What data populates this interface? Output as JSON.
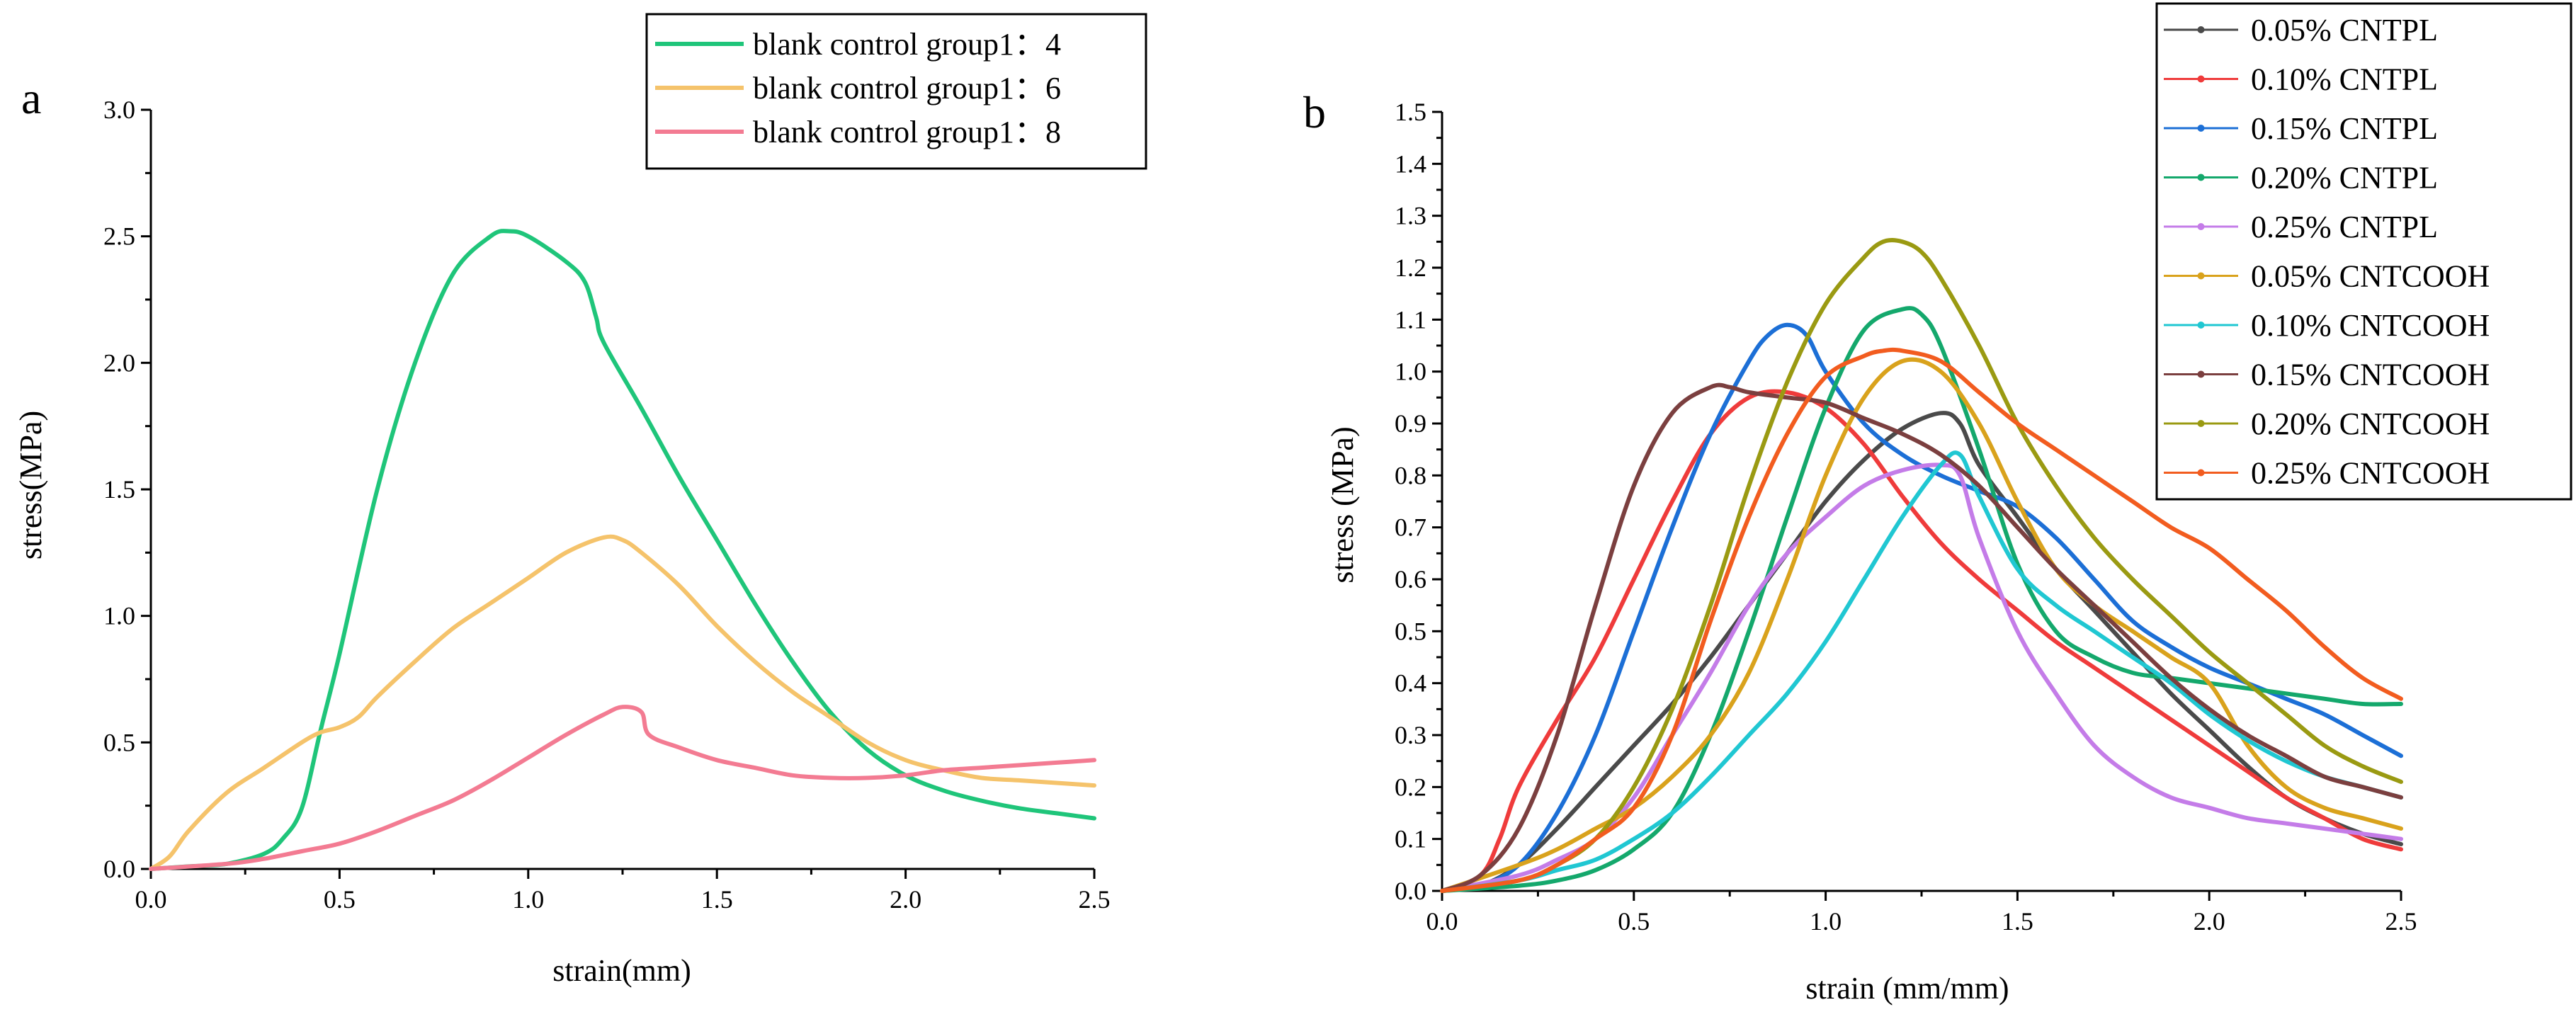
{
  "chart_data": [
    {
      "panel_label": "a",
      "type": "line",
      "xlabel": "strain(mm)",
      "ylabel": "stress(MPa)",
      "xlim": [
        0,
        2.5
      ],
      "ylim": [
        0,
        3.0
      ],
      "xticks": [
        "0.0",
        "0.5",
        "1.0",
        "1.5",
        "2.0",
        "2.5"
      ],
      "yticks": [
        "0.0",
        "0.5",
        "1.0",
        "1.5",
        "2.0",
        "2.5",
        "3.0"
      ],
      "legend_position": "top-right",
      "series": [
        {
          "name": "blank control group1：4",
          "color": "#1fc57a",
          "x": [
            0,
            0.1,
            0.2,
            0.3,
            0.35,
            0.4,
            0.45,
            0.5,
            0.6,
            0.7,
            0.8,
            0.9,
            0.95,
            1.0,
            1.1,
            1.15,
            1.18,
            1.2,
            1.3,
            1.4,
            1.5,
            1.6,
            1.7,
            1.8,
            1.9,
            2.0,
            2.1,
            2.2,
            2.3,
            2.4,
            2.5
          ],
          "y": [
            0,
            0.01,
            0.02,
            0.06,
            0.12,
            0.24,
            0.55,
            0.85,
            1.5,
            2.0,
            2.35,
            2.5,
            2.52,
            2.5,
            2.4,
            2.32,
            2.18,
            2.08,
            1.82,
            1.55,
            1.3,
            1.05,
            0.82,
            0.62,
            0.47,
            0.37,
            0.31,
            0.27,
            0.24,
            0.22,
            0.2
          ]
        },
        {
          "name": "blank control group1：6",
          "color": "#f5c36b",
          "x": [
            0,
            0.05,
            0.1,
            0.2,
            0.3,
            0.4,
            0.45,
            0.5,
            0.55,
            0.6,
            0.7,
            0.8,
            0.9,
            1.0,
            1.1,
            1.2,
            1.25,
            1.3,
            1.4,
            1.5,
            1.6,
            1.7,
            1.8,
            1.9,
            2.0,
            2.1,
            2.2,
            2.3,
            2.5
          ],
          "y": [
            0,
            0.05,
            0.15,
            0.3,
            0.4,
            0.5,
            0.54,
            0.56,
            0.6,
            0.68,
            0.82,
            0.95,
            1.05,
            1.15,
            1.25,
            1.31,
            1.3,
            1.25,
            1.12,
            0.96,
            0.82,
            0.7,
            0.6,
            0.5,
            0.43,
            0.39,
            0.36,
            0.35,
            0.33
          ]
        },
        {
          "name": "blank control group1：8",
          "color": "#f37b92",
          "x": [
            0,
            0.2,
            0.3,
            0.4,
            0.5,
            0.6,
            0.7,
            0.8,
            0.9,
            1.0,
            1.1,
            1.2,
            1.25,
            1.3,
            1.32,
            1.4,
            1.5,
            1.6,
            1.7,
            1.8,
            1.9,
            2.0,
            2.1,
            2.2,
            2.3,
            2.4,
            2.5
          ],
          "y": [
            0,
            0.02,
            0.04,
            0.07,
            0.1,
            0.15,
            0.21,
            0.27,
            0.35,
            0.44,
            0.53,
            0.61,
            0.64,
            0.62,
            0.53,
            0.48,
            0.43,
            0.4,
            0.37,
            0.36,
            0.36,
            0.37,
            0.39,
            0.4,
            0.41,
            0.42,
            0.43
          ]
        }
      ]
    },
    {
      "panel_label": "b",
      "type": "line",
      "xlabel": "strain (mm/mm)",
      "ylabel": "stress (MPa)",
      "xlim": [
        0,
        2.5
      ],
      "ylim": [
        0,
        1.5
      ],
      "xticks": [
        "0.0",
        "0.5",
        "1.0",
        "1.5",
        "2.0",
        "2.5"
      ],
      "yticks": [
        "0.0",
        "0.1",
        "0.2",
        "0.3",
        "0.4",
        "0.5",
        "0.6",
        "0.7",
        "0.8",
        "0.9",
        "1.0",
        "1.1",
        "1.2",
        "1.3",
        "1.4",
        "1.5"
      ],
      "legend_position": "top-right",
      "series": [
        {
          "name": "0.05% CNTPL",
          "color": "#4a4a4a",
          "x": [
            0,
            0.1,
            0.2,
            0.3,
            0.4,
            0.5,
            0.6,
            0.7,
            0.8,
            0.9,
            1.0,
            1.1,
            1.2,
            1.3,
            1.35,
            1.4,
            1.5,
            1.6,
            1.7,
            1.8,
            1.9,
            2.0,
            2.1,
            2.2,
            2.3,
            2.4,
            2.5
          ],
          "y": [
            0,
            0.01,
            0.05,
            0.12,
            0.2,
            0.28,
            0.36,
            0.45,
            0.55,
            0.65,
            0.75,
            0.83,
            0.89,
            0.92,
            0.9,
            0.82,
            0.72,
            0.62,
            0.54,
            0.46,
            0.38,
            0.31,
            0.24,
            0.18,
            0.14,
            0.11,
            0.09
          ]
        },
        {
          "name": "0.10% CNTPL",
          "color": "#ef3b3b",
          "x": [
            0,
            0.1,
            0.15,
            0.2,
            0.3,
            0.4,
            0.5,
            0.6,
            0.7,
            0.8,
            0.9,
            1.0,
            1.1,
            1.2,
            1.3,
            1.4,
            1.5,
            1.6,
            1.7,
            1.8,
            1.9,
            2.0,
            2.1,
            2.2,
            2.3,
            2.4,
            2.5
          ],
          "y": [
            0,
            0.03,
            0.1,
            0.2,
            0.33,
            0.45,
            0.6,
            0.75,
            0.88,
            0.95,
            0.96,
            0.93,
            0.86,
            0.76,
            0.67,
            0.6,
            0.54,
            0.48,
            0.43,
            0.38,
            0.33,
            0.28,
            0.23,
            0.18,
            0.14,
            0.1,
            0.08
          ]
        },
        {
          "name": "0.15% CNTPL",
          "color": "#1c6fd6",
          "x": [
            0,
            0.1,
            0.2,
            0.3,
            0.4,
            0.5,
            0.6,
            0.7,
            0.8,
            0.85,
            0.9,
            0.95,
            1.0,
            1.1,
            1.2,
            1.3,
            1.4,
            1.5,
            1.6,
            1.7,
            1.8,
            1.9,
            2.0,
            2.1,
            2.2,
            2.3,
            2.4,
            2.5
          ],
          "y": [
            0,
            0.01,
            0.05,
            0.15,
            0.3,
            0.5,
            0.7,
            0.88,
            1.02,
            1.07,
            1.09,
            1.07,
            1.0,
            0.9,
            0.84,
            0.8,
            0.77,
            0.74,
            0.68,
            0.6,
            0.52,
            0.47,
            0.43,
            0.4,
            0.37,
            0.34,
            0.3,
            0.26
          ]
        },
        {
          "name": "0.20% CNTPL",
          "color": "#14a86c",
          "x": [
            0,
            0.2,
            0.3,
            0.4,
            0.5,
            0.6,
            0.7,
            0.8,
            0.9,
            1.0,
            1.1,
            1.2,
            1.25,
            1.3,
            1.4,
            1.5,
            1.6,
            1.7,
            1.8,
            1.9,
            2.0,
            2.1,
            2.2,
            2.3,
            2.4,
            2.5
          ],
          "y": [
            0,
            0.01,
            0.02,
            0.04,
            0.08,
            0.15,
            0.3,
            0.5,
            0.72,
            0.93,
            1.08,
            1.12,
            1.11,
            1.05,
            0.85,
            0.63,
            0.5,
            0.45,
            0.42,
            0.41,
            0.4,
            0.39,
            0.38,
            0.37,
            0.36,
            0.36
          ]
        },
        {
          "name": "0.25% CNTPL",
          "color": "#c47ce8",
          "x": [
            0,
            0.2,
            0.3,
            0.4,
            0.5,
            0.6,
            0.7,
            0.8,
            0.9,
            1.0,
            1.1,
            1.2,
            1.3,
            1.35,
            1.4,
            1.5,
            1.6,
            1.7,
            1.8,
            1.9,
            2.0,
            2.1,
            2.2,
            2.3,
            2.4,
            2.5
          ],
          "y": [
            0,
            0.03,
            0.06,
            0.1,
            0.18,
            0.3,
            0.42,
            0.55,
            0.65,
            0.72,
            0.78,
            0.81,
            0.82,
            0.8,
            0.68,
            0.5,
            0.38,
            0.28,
            0.22,
            0.18,
            0.16,
            0.14,
            0.13,
            0.12,
            0.11,
            0.1
          ]
        },
        {
          "name": "0.05% CNTCOOH",
          "color": "#d9a21c",
          "x": [
            0,
            0.2,
            0.3,
            0.4,
            0.5,
            0.6,
            0.7,
            0.8,
            0.9,
            1.0,
            1.1,
            1.2,
            1.3,
            1.4,
            1.5,
            1.6,
            1.7,
            1.8,
            1.9,
            2.0,
            2.1,
            2.2,
            2.3,
            2.4,
            2.5
          ],
          "y": [
            0,
            0.05,
            0.08,
            0.12,
            0.16,
            0.22,
            0.3,
            0.42,
            0.6,
            0.8,
            0.95,
            1.02,
            1.0,
            0.9,
            0.75,
            0.62,
            0.55,
            0.5,
            0.45,
            0.4,
            0.28,
            0.2,
            0.16,
            0.14,
            0.12
          ]
        },
        {
          "name": "0.10% CNTCOOH",
          "color": "#20c7d2",
          "x": [
            0,
            0.2,
            0.3,
            0.4,
            0.5,
            0.6,
            0.7,
            0.8,
            0.9,
            1.0,
            1.1,
            1.2,
            1.3,
            1.35,
            1.4,
            1.5,
            1.6,
            1.7,
            1.8,
            1.9,
            2.0,
            2.1,
            2.2,
            2.3,
            2.4,
            2.5
          ],
          "y": [
            0,
            0.02,
            0.04,
            0.06,
            0.1,
            0.15,
            0.22,
            0.3,
            0.38,
            0.48,
            0.6,
            0.72,
            0.82,
            0.84,
            0.76,
            0.62,
            0.55,
            0.5,
            0.45,
            0.4,
            0.34,
            0.29,
            0.25,
            0.22,
            0.2,
            0.18
          ]
        },
        {
          "name": "0.15% CNTCOOH",
          "color": "#7b3f3f",
          "x": [
            0,
            0.1,
            0.2,
            0.3,
            0.4,
            0.5,
            0.6,
            0.7,
            0.75,
            0.8,
            0.9,
            1.0,
            1.1,
            1.2,
            1.3,
            1.4,
            1.5,
            1.6,
            1.7,
            1.8,
            1.9,
            2.0,
            2.1,
            2.2,
            2.3,
            2.4,
            2.5
          ],
          "y": [
            0,
            0.03,
            0.12,
            0.3,
            0.55,
            0.78,
            0.92,
            0.97,
            0.97,
            0.96,
            0.95,
            0.94,
            0.91,
            0.88,
            0.84,
            0.78,
            0.7,
            0.62,
            0.55,
            0.48,
            0.41,
            0.35,
            0.3,
            0.26,
            0.22,
            0.2,
            0.18
          ]
        },
        {
          "name": "0.20% CNTCOOH",
          "color": "#9a9a12",
          "x": [
            0,
            0.2,
            0.3,
            0.4,
            0.5,
            0.6,
            0.7,
            0.8,
            0.9,
            1.0,
            1.1,
            1.15,
            1.2,
            1.25,
            1.3,
            1.4,
            1.5,
            1.6,
            1.7,
            1.8,
            1.9,
            2.0,
            2.1,
            2.2,
            2.3,
            2.4,
            2.5
          ],
          "y": [
            0,
            0.02,
            0.05,
            0.1,
            0.2,
            0.35,
            0.55,
            0.78,
            0.98,
            1.13,
            1.22,
            1.25,
            1.25,
            1.23,
            1.18,
            1.05,
            0.9,
            0.78,
            0.68,
            0.6,
            0.53,
            0.46,
            0.4,
            0.34,
            0.28,
            0.24,
            0.21
          ]
        },
        {
          "name": "0.25% CNTCOOH",
          "color": "#f25c1f",
          "x": [
            0,
            0.2,
            0.3,
            0.4,
            0.5,
            0.6,
            0.7,
            0.8,
            0.9,
            1.0,
            1.1,
            1.15,
            1.2,
            1.3,
            1.4,
            1.5,
            1.6,
            1.7,
            1.8,
            1.9,
            2.0,
            2.1,
            2.2,
            2.3,
            2.4,
            2.5
          ],
          "y": [
            0,
            0.02,
            0.05,
            0.1,
            0.16,
            0.3,
            0.52,
            0.72,
            0.88,
            0.99,
            1.03,
            1.04,
            1.04,
            1.02,
            0.96,
            0.9,
            0.85,
            0.8,
            0.75,
            0.7,
            0.66,
            0.6,
            0.54,
            0.47,
            0.41,
            0.37
          ]
        }
      ]
    }
  ]
}
